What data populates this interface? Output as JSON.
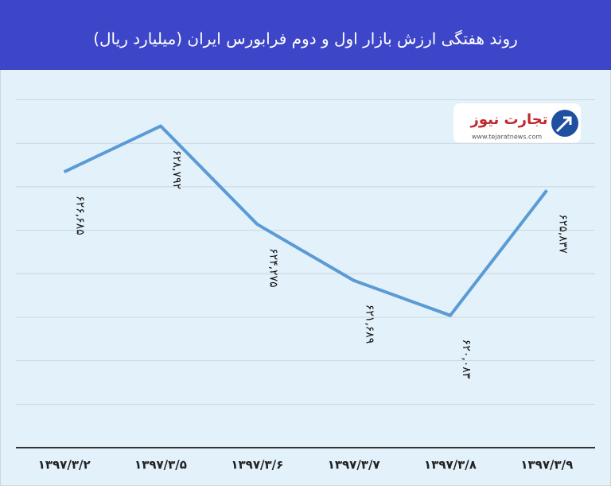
{
  "chart_data": {
    "type": "line",
    "title": "روند هفتگی ارزش بازار اول و دوم فرابورس  ایران (میلیارد ریال)",
    "categories": [
      "۱۳۹۷/۳/۲",
      "۱۳۹۷/۳/۵",
      "۱۳۹۷/۳/۶",
      "۱۳۹۷/۳/۷",
      "۱۳۹۷/۳/۸",
      "۱۳۹۷/۳/۹"
    ],
    "series": [
      {
        "color": "#5b9bd5",
        "values": [
          626685,
          628792,
          624275,
          621689,
          620083,
          625837
        ],
        "value_labels": [
          "۶۲۶,۶۸۵",
          "۶۲۸,۷۹۲",
          "۶۲۴,۲۷۵",
          "۶۲۱,۶۸۹",
          "۶۲۰,۰۸۳",
          "۶۲۵,۸۳۷"
        ]
      }
    ],
    "ylim": [
      614000,
      631300
    ],
    "yticks": [
      616000,
      618000,
      620000,
      622000,
      624000,
      626000,
      628000,
      630000
    ],
    "grid": true
  },
  "logo": {
    "name": "تجارت نیوز",
    "url": "www.tejaratnews.com"
  }
}
